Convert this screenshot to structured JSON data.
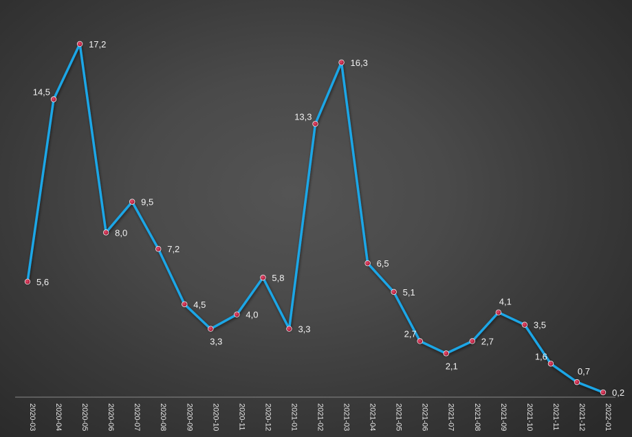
{
  "chart_data": {
    "type": "line",
    "title": "",
    "xlabel": "",
    "ylabel": "",
    "categories": [
      "2020-03",
      "2020-04",
      "2020-05",
      "2020-06",
      "2020-07",
      "2020-08",
      "2020-09",
      "2020-10",
      "2020-11",
      "2020-12",
      "2021-01",
      "2021-02",
      "2021-03",
      "2021-04",
      "2021-05",
      "2021-06",
      "2021-07",
      "2021-08",
      "2021-09",
      "2021-10",
      "2021-11",
      "2021-12",
      "2022-01"
    ],
    "series": [
      {
        "values": [
          5.6,
          14.5,
          17.2,
          8.0,
          9.5,
          7.2,
          4.5,
          3.3,
          4.0,
          5.8,
          3.3,
          13.3,
          16.3,
          6.5,
          5.1,
          2.7,
          2.1,
          2.7,
          4.1,
          3.5,
          1.6,
          0.7,
          0.2
        ],
        "labels": [
          "5,6",
          "14,5",
          "17,2",
          "8,0",
          "9,5",
          "7,2",
          "4,5",
          "3,3",
          "4,0",
          "5,8",
          "3,3",
          "13,3",
          "16,3",
          "6,5",
          "5,1",
          "2,7",
          "2,1",
          "2,7",
          "4,1",
          "3,5",
          "1,6",
          "0,7",
          "0,2"
        ],
        "label_positions": [
          "right",
          "left",
          "right",
          "right",
          "right",
          "right",
          "right",
          "below",
          "right",
          "right",
          "right",
          "left",
          "right",
          "right",
          "right",
          "left",
          "below",
          "right",
          "above",
          "right",
          "left",
          "above",
          "right"
        ]
      }
    ],
    "ylim": [
      0,
      17.5
    ],
    "grid": false,
    "legend": "none",
    "colors": {
      "line": "#1aa6e6",
      "marker": "#c0143c",
      "axis": "#8a8a8a",
      "text": "#f2f2f2"
    }
  }
}
